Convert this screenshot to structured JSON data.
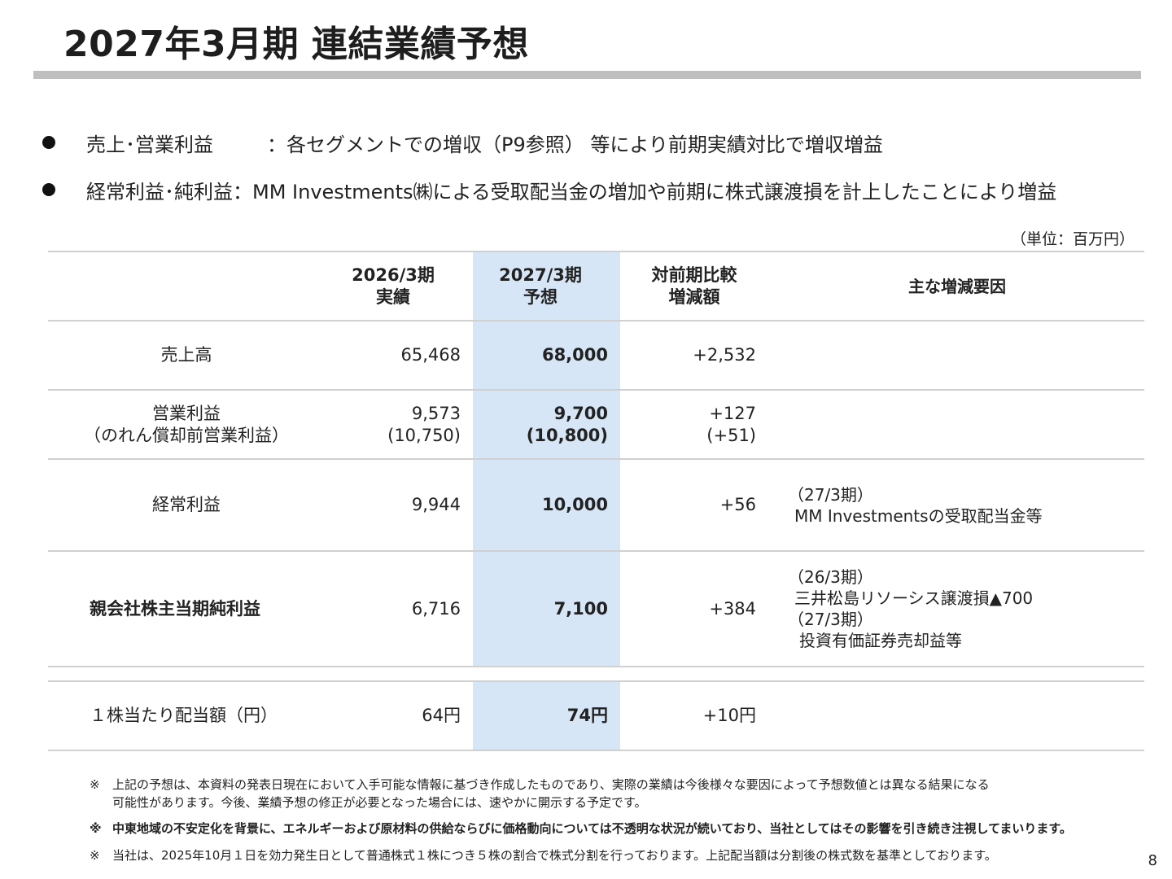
{
  "title": "2027年3月期 連結業績予想",
  "bullets": [
    {
      "label": "売上･営業利益",
      "text": "：各セグメントでの増収（P9参照） 等により前期実績対比で増収増益"
    },
    {
      "label": "経常利益･純利益",
      "text": "：MM Investments㈱による受取配当金の増加や前期に株式譲渡損を計上したことにより増益"
    }
  ],
  "unit": "（単位：百万円）",
  "table": {
    "headers": {
      "prev": [
        "2026/3期",
        "実績"
      ],
      "forecast": [
        "2027/3期",
        "予想"
      ],
      "diff": [
        "対前期比較",
        "増減額"
      ],
      "reason": "主な増減要因"
    },
    "rows": [
      {
        "label": [
          "売上高"
        ],
        "prev": [
          "65,468"
        ],
        "forecast": [
          "68,000"
        ],
        "diff": [
          "+2,532"
        ],
        "reason": []
      },
      {
        "label": [
          "営業利益",
          "（のれん償却前営業利益）"
        ],
        "prev": [
          "9,573",
          "(10,750)"
        ],
        "forecast": [
          "9,700",
          "(10,800)"
        ],
        "diff": [
          "+127",
          "(+51)"
        ],
        "reason": []
      },
      {
        "label": [
          "経常利益"
        ],
        "prev": [
          "9,944"
        ],
        "forecast": [
          "10,000"
        ],
        "diff": [
          "+56"
        ],
        "reason": [
          "（27/3期）",
          "MM Investmentsの受取配当金等"
        ]
      },
      {
        "label": [
          "親会社株主当期純利益"
        ],
        "prev": [
          "6,716"
        ],
        "forecast": [
          "7,100"
        ],
        "diff": [
          "+384"
        ],
        "reason": [
          "（26/3期）",
          "三井松島リソーシス譲渡損▲700",
          "（27/3期）",
          "投資有価証券売却益等"
        ]
      }
    ],
    "dividend": {
      "label": "１株当たり配当額（円）",
      "prev": "64円",
      "forecast": "74円",
      "diff": "+10円"
    }
  },
  "notes": {
    "mark": "※",
    "n1a": "上記の予想は、本資料の発表日現在において入手可能な情報に基づき作成したものであり、実際の業績は今後様々な要因によって予想数値とは異なる結果になる",
    "n1b": "可能性があります。今後、業績予想の修正が必要となった場合には、速やかに開示する予定です。",
    "n2": "中東地域の不安定化を背景に、エネルギーおよび原材料の供給ならびに価格動向については不透明な状況が続いており、当社としてはその影響を引き続き注視してまいります。",
    "n3": "当社は、2025年10月１日を効力発生日として普通株式１株につき５株の割合で株式分割を行っております。上記配当額は分割後の株式数を基準としております。"
  },
  "page_number": "8"
}
